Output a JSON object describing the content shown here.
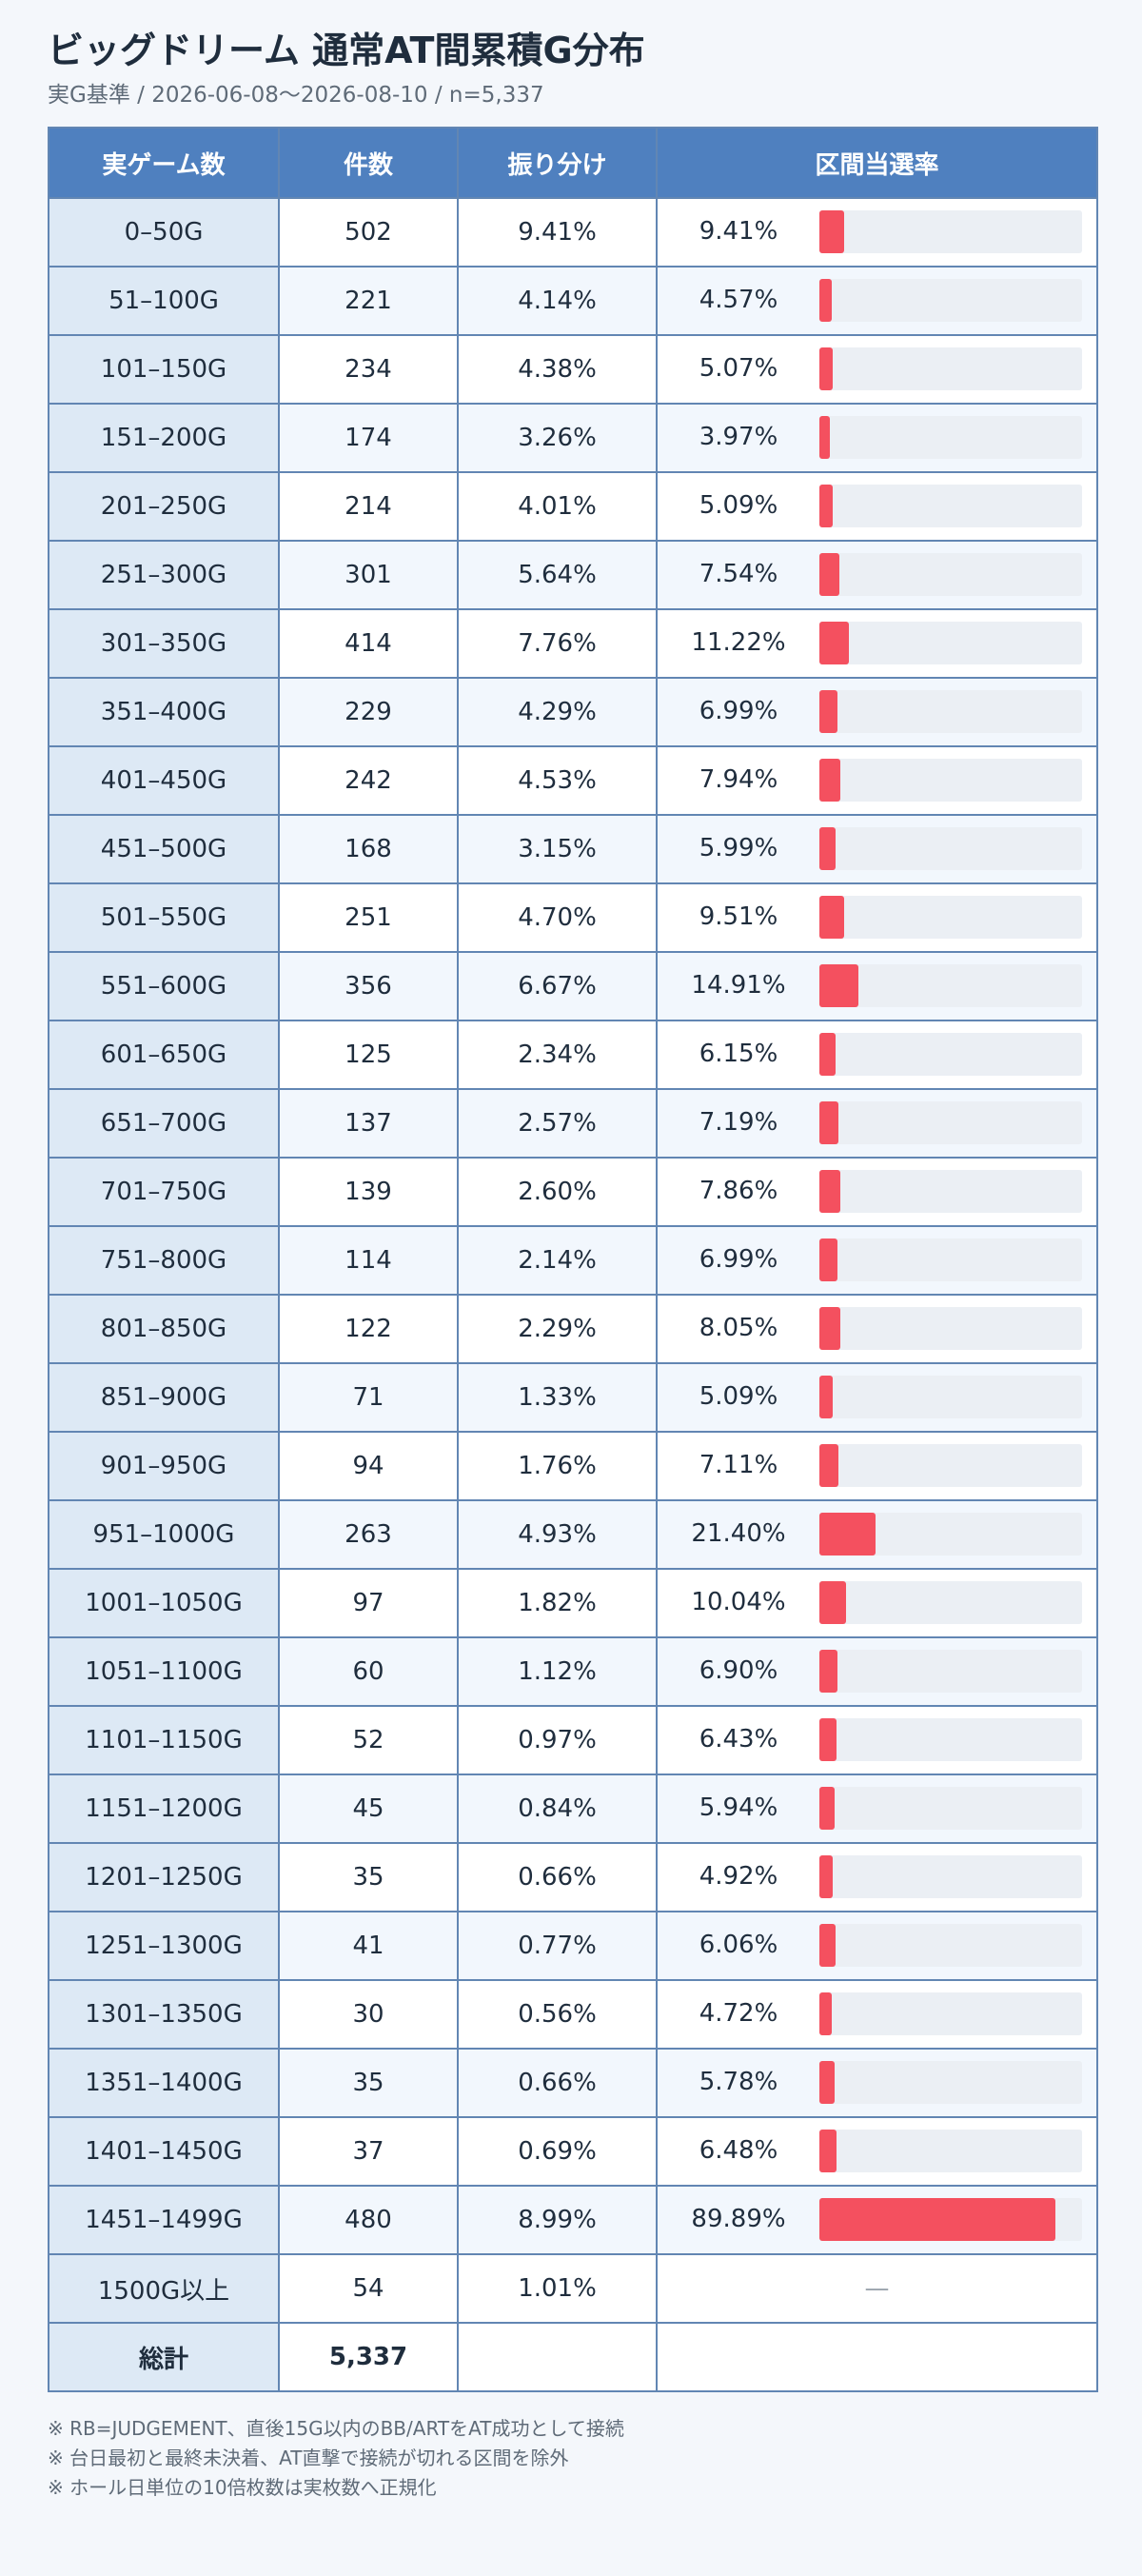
{
  "header": {
    "title": "ビッグドリーム 通常AT間累積G分布",
    "subtitle": "実G基準 / 2026-06-08〜2026-08-10 / n=5,337"
  },
  "table": {
    "columns": [
      "実ゲーム数",
      "件数",
      "振り分け",
      "区間当選率"
    ],
    "rows": [
      [
        "0–50G",
        "502",
        "9.41%",
        9.41,
        "9.41%"
      ],
      [
        "51–100G",
        "221",
        "4.14%",
        4.57,
        "4.57%"
      ],
      [
        "101–150G",
        "234",
        "4.38%",
        5.07,
        "5.07%"
      ],
      [
        "151–200G",
        "174",
        "3.26%",
        3.97,
        "3.97%"
      ],
      [
        "201–250G",
        "214",
        "4.01%",
        5.09,
        "5.09%"
      ],
      [
        "251–300G",
        "301",
        "5.64%",
        7.54,
        "7.54%"
      ],
      [
        "301–350G",
        "414",
        "7.76%",
        11.22,
        "11.22%"
      ],
      [
        "351–400G",
        "229",
        "4.29%",
        6.99,
        "6.99%"
      ],
      [
        "401–450G",
        "242",
        "4.53%",
        7.94,
        "7.94%"
      ],
      [
        "451–500G",
        "168",
        "3.15%",
        5.99,
        "5.99%"
      ],
      [
        "501–550G",
        "251",
        "4.70%",
        9.51,
        "9.51%"
      ],
      [
        "551–600G",
        "356",
        "6.67%",
        14.91,
        "14.91%"
      ],
      [
        "601–650G",
        "125",
        "2.34%",
        6.15,
        "6.15%"
      ],
      [
        "651–700G",
        "137",
        "2.57%",
        7.19,
        "7.19%"
      ],
      [
        "701–750G",
        "139",
        "2.60%",
        7.86,
        "7.86%"
      ],
      [
        "751–800G",
        "114",
        "2.14%",
        6.99,
        "6.99%"
      ],
      [
        "801–850G",
        "122",
        "2.29%",
        8.05,
        "8.05%"
      ],
      [
        "851–900G",
        "71",
        "1.33%",
        5.09,
        "5.09%"
      ],
      [
        "901–950G",
        "94",
        "1.76%",
        7.11,
        "7.11%"
      ],
      [
        "951–1000G",
        "263",
        "4.93%",
        21.4,
        "21.40%"
      ],
      [
        "1001–1050G",
        "97",
        "1.82%",
        10.04,
        "10.04%"
      ],
      [
        "1051–1100G",
        "60",
        "1.12%",
        6.9,
        "6.90%"
      ],
      [
        "1101–1150G",
        "52",
        "0.97%",
        6.43,
        "6.43%"
      ],
      [
        "1151–1200G",
        "45",
        "0.84%",
        5.94,
        "5.94%"
      ],
      [
        "1201–1250G",
        "35",
        "0.66%",
        4.92,
        "4.92%"
      ],
      [
        "1251–1300G",
        "41",
        "0.77%",
        6.06,
        "6.06%"
      ],
      [
        "1301–1350G",
        "30",
        "0.56%",
        4.72,
        "4.72%"
      ],
      [
        "1351–1400G",
        "35",
        "0.66%",
        5.78,
        "5.78%"
      ],
      [
        "1401–1450G",
        "37",
        "0.69%",
        6.48,
        "6.48%"
      ],
      [
        "1451–1499G",
        "480",
        "8.99%",
        89.89,
        "89.89%"
      ],
      [
        "1500G以上",
        "54",
        "1.01%",
        null,
        "—"
      ]
    ],
    "total": {
      "label": "総計",
      "count": "5,337"
    }
  },
  "notes": [
    "※ RB=JUDGEMENT、直後15G以内のBB/ARTをAT成功として接続",
    "※ 台日最初と最終未決着、AT直撃で接続が切れる区間を除外",
    "※ ホール日単位の10倍枚数は実枚数へ正規化"
  ]
}
